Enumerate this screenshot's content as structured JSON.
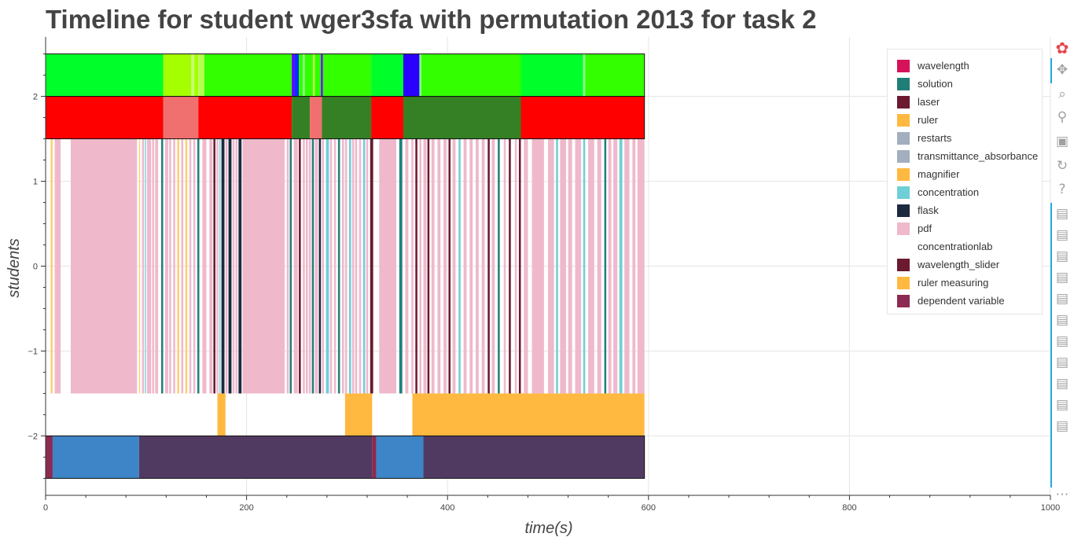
{
  "chart_data": {
    "type": "timeline",
    "title": "Timeline for student wger3sfa with permutation 2013 for task 2",
    "xlabel": "time(s)",
    "ylabel": "students",
    "xlim": [
      0,
      1000
    ],
    "ylim": [
      -2.7,
      2.7
    ],
    "x_ticks": [
      0,
      200,
      400,
      600,
      800,
      1000
    ],
    "y_ticks": [
      -2,
      -1,
      0,
      1,
      2
    ],
    "x_tick_labels": [
      "0",
      "200",
      "400",
      "600",
      "800",
      "1000"
    ],
    "y_tick_labels": [
      "−2",
      "−1",
      "0",
      "1",
      "2"
    ],
    "grid": true,
    "legend_position": "top-right",
    "lanes": [
      {
        "y_range": [
          2,
          2.5
        ],
        "segments": [
          {
            "start": 0,
            "end": 117,
            "color": "#00ff2a"
          },
          {
            "start": 117,
            "end": 145,
            "color": "#a6ff00"
          },
          {
            "start": 145,
            "end": 148,
            "color": "#c8ff70"
          },
          {
            "start": 148,
            "end": 152,
            "color": "#a6ff00"
          },
          {
            "start": 152,
            "end": 158,
            "color": "#b6ff50"
          },
          {
            "start": 158,
            "end": 245,
            "color": "#33ff00"
          },
          {
            "start": 245,
            "end": 248,
            "color": "#6a00ff"
          },
          {
            "start": 248,
            "end": 252,
            "color": "#0033ff"
          },
          {
            "start": 252,
            "end": 256,
            "color": "#33ff00"
          },
          {
            "start": 256,
            "end": 258,
            "color": "#80ff80"
          },
          {
            "start": 258,
            "end": 266,
            "color": "#33ff00"
          },
          {
            "start": 266,
            "end": 268,
            "color": "#b6ff50"
          },
          {
            "start": 268,
            "end": 274,
            "color": "#33ff00"
          },
          {
            "start": 274,
            "end": 276,
            "color": "#6a00ff"
          },
          {
            "start": 276,
            "end": 324,
            "color": "#33ff00"
          },
          {
            "start": 324,
            "end": 356,
            "color": "#00ff2a"
          },
          {
            "start": 356,
            "end": 372,
            "color": "#2a00ff"
          },
          {
            "start": 372,
            "end": 374,
            "color": "#80ff80"
          },
          {
            "start": 374,
            "end": 473,
            "color": "#33ff00"
          },
          {
            "start": 473,
            "end": 535,
            "color": "#00ff2a"
          },
          {
            "start": 535,
            "end": 537,
            "color": "#90ff90"
          },
          {
            "start": 537,
            "end": 596,
            "color": "#33ff00"
          }
        ]
      },
      {
        "y_range": [
          1.5,
          2
        ],
        "segments": [
          {
            "start": 0,
            "end": 117,
            "color": "#ff0000"
          },
          {
            "start": 117,
            "end": 152,
            "color": "#f07070"
          },
          {
            "start": 152,
            "end": 245,
            "color": "#ff0000"
          },
          {
            "start": 245,
            "end": 263,
            "color": "#358024"
          },
          {
            "start": 263,
            "end": 275,
            "color": "#f07070"
          },
          {
            "start": 275,
            "end": 324,
            "color": "#358024"
          },
          {
            "start": 324,
            "end": 356,
            "color": "#ff0000"
          },
          {
            "start": 356,
            "end": 473,
            "color": "#358024"
          },
          {
            "start": 473,
            "end": 596,
            "color": "#ff0000"
          }
        ]
      },
      {
        "y_range": [
          -1.5,
          1.5
        ],
        "segments": [
          {
            "start": 5,
            "end": 7,
            "color": "#fccf75"
          },
          {
            "start": 9,
            "end": 15,
            "color": "#efb9cb"
          },
          {
            "start": 25,
            "end": 91,
            "color": "#efb9cb"
          },
          {
            "start": 93,
            "end": 94,
            "color": "#fccf75"
          },
          {
            "start": 96,
            "end": 98,
            "color": "#efb9cb"
          },
          {
            "start": 99,
            "end": 100,
            "color": "#6fcfd6"
          },
          {
            "start": 101,
            "end": 105,
            "color": "#efb9cb"
          },
          {
            "start": 106,
            "end": 108,
            "color": "#efb9cb"
          },
          {
            "start": 109,
            "end": 112,
            "color": "#efb9cb"
          },
          {
            "start": 115,
            "end": 117,
            "color": "#22807a"
          },
          {
            "start": 119,
            "end": 122,
            "color": "#efb9cb"
          },
          {
            "start": 123,
            "end": 125,
            "color": "#efb9cb"
          },
          {
            "start": 127,
            "end": 129,
            "color": "#efb9cb"
          },
          {
            "start": 131,
            "end": 133,
            "color": "#fccf75"
          },
          {
            "start": 135,
            "end": 137,
            "color": "#efb9cb"
          },
          {
            "start": 139,
            "end": 141,
            "color": "#fccf75"
          },
          {
            "start": 143,
            "end": 145,
            "color": "#efb9cb"
          },
          {
            "start": 147,
            "end": 149,
            "color": "#efb9cb"
          },
          {
            "start": 151,
            "end": 153,
            "color": "#22807a"
          },
          {
            "start": 156,
            "end": 160,
            "color": "#efb9cb"
          },
          {
            "start": 163,
            "end": 166,
            "color": "#efb9cb"
          },
          {
            "start": 167,
            "end": 169,
            "color": "#6b1a30"
          },
          {
            "start": 170,
            "end": 172,
            "color": "#efb9cb"
          },
          {
            "start": 173,
            "end": 174,
            "color": "#6fcfd6"
          },
          {
            "start": 175,
            "end": 178,
            "color": "#1b2a3f"
          },
          {
            "start": 179,
            "end": 181,
            "color": "#efb9cb"
          },
          {
            "start": 182,
            "end": 185,
            "color": "#1b2a3f"
          },
          {
            "start": 186,
            "end": 188,
            "color": "#efb9cb"
          },
          {
            "start": 189,
            "end": 191,
            "color": "#efb9cb"
          },
          {
            "start": 192,
            "end": 195,
            "color": "#1b2a3f"
          },
          {
            "start": 196,
            "end": 238,
            "color": "#efb9cb"
          },
          {
            "start": 240,
            "end": 242,
            "color": "#efb9cb"
          },
          {
            "start": 243,
            "end": 245,
            "color": "#22807a"
          },
          {
            "start": 247,
            "end": 251,
            "color": "#efb9cb"
          },
          {
            "start": 252,
            "end": 254,
            "color": "#6b1a30"
          },
          {
            "start": 256,
            "end": 258,
            "color": "#efb9cb"
          },
          {
            "start": 259,
            "end": 261,
            "color": "#efb9cb"
          },
          {
            "start": 262,
            "end": 264,
            "color": "#efb9cb"
          },
          {
            "start": 265,
            "end": 267,
            "color": "#22807a"
          },
          {
            "start": 268,
            "end": 271,
            "color": "#efb9cb"
          },
          {
            "start": 272,
            "end": 274,
            "color": "#1b2a3f"
          },
          {
            "start": 275,
            "end": 277,
            "color": "#efb9cb"
          },
          {
            "start": 279,
            "end": 282,
            "color": "#6fcfd6"
          },
          {
            "start": 283,
            "end": 285,
            "color": "#efb9cb"
          },
          {
            "start": 287,
            "end": 289,
            "color": "#efb9cb"
          },
          {
            "start": 291,
            "end": 293,
            "color": "#22807a"
          },
          {
            "start": 295,
            "end": 297,
            "color": "#efb9cb"
          },
          {
            "start": 298,
            "end": 300,
            "color": "#efb9cb"
          },
          {
            "start": 302,
            "end": 304,
            "color": "#6fcfd6"
          },
          {
            "start": 305,
            "end": 307,
            "color": "#efb9cb"
          },
          {
            "start": 308,
            "end": 310,
            "color": "#efb9cb"
          },
          {
            "start": 312,
            "end": 314,
            "color": "#efb9cb"
          },
          {
            "start": 316,
            "end": 318,
            "color": "#6fcfd6"
          },
          {
            "start": 319,
            "end": 321,
            "color": "#efb9cb"
          },
          {
            "start": 323,
            "end": 326,
            "color": "#6b1a30"
          },
          {
            "start": 332,
            "end": 349,
            "color": "#efb9cb"
          },
          {
            "start": 352,
            "end": 355,
            "color": "#22807a"
          },
          {
            "start": 358,
            "end": 361,
            "color": "#efb9cb"
          },
          {
            "start": 364,
            "end": 366,
            "color": "#efb9cb"
          },
          {
            "start": 368,
            "end": 370,
            "color": "#6b1a30"
          },
          {
            "start": 372,
            "end": 374,
            "color": "#efb9cb"
          },
          {
            "start": 376,
            "end": 379,
            "color": "#efb9cb"
          },
          {
            "start": 380,
            "end": 382,
            "color": "#6b1a30"
          },
          {
            "start": 384,
            "end": 387,
            "color": "#efb9cb"
          },
          {
            "start": 390,
            "end": 393,
            "color": "#efb9cb"
          },
          {
            "start": 396,
            "end": 399,
            "color": "#efb9cb"
          },
          {
            "start": 401,
            "end": 403,
            "color": "#6b1a30"
          },
          {
            "start": 405,
            "end": 408,
            "color": "#efb9cb"
          },
          {
            "start": 411,
            "end": 413,
            "color": "#6fcfd6"
          },
          {
            "start": 416,
            "end": 419,
            "color": "#efb9cb"
          },
          {
            "start": 422,
            "end": 425,
            "color": "#efb9cb"
          },
          {
            "start": 428,
            "end": 431,
            "color": "#efb9cb"
          },
          {
            "start": 434,
            "end": 437,
            "color": "#efb9cb"
          },
          {
            "start": 440,
            "end": 442,
            "color": "#6b1a30"
          },
          {
            "start": 444,
            "end": 447,
            "color": "#efb9cb"
          },
          {
            "start": 450,
            "end": 452,
            "color": "#22807a"
          },
          {
            "start": 456,
            "end": 458,
            "color": "#efb9cb"
          },
          {
            "start": 461,
            "end": 463,
            "color": "#6b1a30"
          },
          {
            "start": 467,
            "end": 469,
            "color": "#efb9cb"
          },
          {
            "start": 471,
            "end": 473,
            "color": "#6b1a30"
          },
          {
            "start": 476,
            "end": 480,
            "color": "#efb9cb"
          },
          {
            "start": 484,
            "end": 496,
            "color": "#efb9cb"
          },
          {
            "start": 500,
            "end": 506,
            "color": "#efb9cb"
          },
          {
            "start": 508,
            "end": 510,
            "color": "#6fcfd6"
          },
          {
            "start": 512,
            "end": 518,
            "color": "#efb9cb"
          },
          {
            "start": 520,
            "end": 524,
            "color": "#efb9cb"
          },
          {
            "start": 527,
            "end": 533,
            "color": "#efb9cb"
          },
          {
            "start": 535,
            "end": 537,
            "color": "#6fcfd6"
          },
          {
            "start": 540,
            "end": 546,
            "color": "#efb9cb"
          },
          {
            "start": 549,
            "end": 553,
            "color": "#efb9cb"
          },
          {
            "start": 556,
            "end": 558,
            "color": "#22807a"
          },
          {
            "start": 560,
            "end": 563,
            "color": "#efb9cb"
          },
          {
            "start": 565,
            "end": 569,
            "color": "#efb9cb"
          },
          {
            "start": 571,
            "end": 574,
            "color": "#6fcfd6"
          },
          {
            "start": 576,
            "end": 581,
            "color": "#efb9cb"
          },
          {
            "start": 584,
            "end": 587,
            "color": "#efb9cb"
          },
          {
            "start": 589,
            "end": 596,
            "color": "#efb9cb"
          }
        ]
      },
      {
        "y_range": [
          -2,
          -1.5
        ],
        "segments": [
          {
            "start": 171,
            "end": 179,
            "color": "#ffb941"
          },
          {
            "start": 298,
            "end": 325,
            "color": "#ffb941"
          },
          {
            "start": 365,
            "end": 596,
            "color": "#ffb941"
          }
        ]
      },
      {
        "y_range": [
          -2.5,
          -2
        ],
        "segments": [
          {
            "start": 0,
            "end": 7,
            "color": "#8c2a52"
          },
          {
            "start": 7,
            "end": 93,
            "color": "#3d85c6"
          },
          {
            "start": 93,
            "end": 325,
            "color": "#513a62"
          },
          {
            "start": 325,
            "end": 329,
            "color": "#8c2a52"
          },
          {
            "start": 329,
            "end": 376,
            "color": "#3d85c6"
          },
          {
            "start": 376,
            "end": 596,
            "color": "#513a62"
          }
        ]
      }
    ],
    "lane_outlines": [
      {
        "start": 0,
        "end": 596,
        "y_range": [
          2,
          2.5
        ]
      },
      {
        "start": 0,
        "end": 596,
        "y_range": [
          1.5,
          2
        ]
      },
      {
        "start": 0,
        "end": 596,
        "y_range": [
          -2.5,
          -2
        ]
      }
    ],
    "legend": [
      {
        "label": "wavelength",
        "color": "#d6125a"
      },
      {
        "label": "solution",
        "color": "#1f7f78"
      },
      {
        "label": "laser",
        "color": "#6b1a30"
      },
      {
        "label": "ruler",
        "color": "#ffb941"
      },
      {
        "label": "restarts",
        "color": "#a3aebe"
      },
      {
        "label": "transmittance_absorbance",
        "color": "#a3aebe"
      },
      {
        "label": "magnifier",
        "color": "#ffb941"
      },
      {
        "label": "concentration",
        "color": "#6fcfd6"
      },
      {
        "label": "flask",
        "color": "#1b2a3f"
      },
      {
        "label": "pdf",
        "color": "#efb9cb"
      },
      {
        "label": "concentrationlab",
        "color": "#ffffff"
      },
      {
        "label": "wavelength_slider",
        "color": "#6b1a30"
      },
      {
        "label": "ruler measuring",
        "color": "#ffb941"
      },
      {
        "label": "dependent variable",
        "color": "#8c2a52"
      }
    ]
  },
  "toolbar": {
    "tools": [
      {
        "name": "bokeh-logo-icon",
        "glyph": "✿",
        "interactable": false
      },
      {
        "name": "pan-tool-icon",
        "glyph": "✥",
        "interactable": true
      },
      {
        "name": "box-zoom-tool-icon",
        "glyph": "⌕",
        "interactable": true
      },
      {
        "name": "wheel-zoom-tool-icon",
        "glyph": "⚲",
        "interactable": true
      },
      {
        "name": "save-tool-icon",
        "glyph": "▣",
        "interactable": true
      },
      {
        "name": "reset-tool-icon",
        "glyph": "↻",
        "interactable": true
      },
      {
        "name": "help-tool-icon",
        "glyph": "?",
        "interactable": true
      },
      {
        "name": "hover-tool-icon",
        "glyph": "▤",
        "interactable": true
      },
      {
        "name": "hover-tool-icon",
        "glyph": "▤",
        "interactable": true
      },
      {
        "name": "hover-tool-icon",
        "glyph": "▤",
        "interactable": true
      },
      {
        "name": "hover-tool-icon",
        "glyph": "▤",
        "interactable": true
      },
      {
        "name": "hover-tool-icon",
        "glyph": "▤",
        "interactable": true
      },
      {
        "name": "hover-tool-icon",
        "glyph": "▤",
        "interactable": true
      },
      {
        "name": "hover-tool-icon",
        "glyph": "▤",
        "interactable": true
      },
      {
        "name": "hover-tool-icon",
        "glyph": "▤",
        "interactable": true
      },
      {
        "name": "hover-tool-icon",
        "glyph": "▤",
        "interactable": true
      },
      {
        "name": "hover-tool-icon",
        "glyph": "▤",
        "interactable": true
      },
      {
        "name": "hover-tool-icon",
        "glyph": "▤",
        "interactable": true
      },
      {
        "name": "more-tools-icon",
        "glyph": "⋯",
        "interactable": true
      }
    ],
    "accent_color": "#26aae1"
  }
}
